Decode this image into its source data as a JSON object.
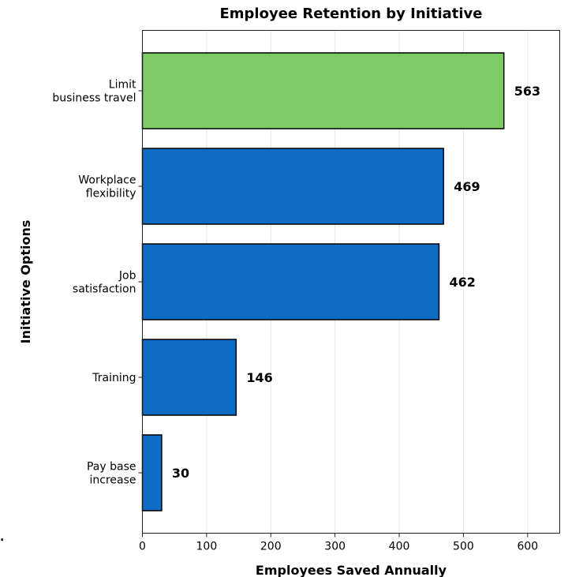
{
  "chart_data": {
    "type": "bar",
    "orientation": "horizontal",
    "title": "Employee Retention by Initiative",
    "xlabel": "Employees Saved Annually",
    "ylabel": "Initiative Options",
    "categories": [
      [
        "Limit",
        "business travel"
      ],
      [
        "Workplace",
        "flexibility"
      ],
      [
        "Job",
        "satisfaction"
      ],
      [
        "Training"
      ],
      [
        "Pay base",
        "increase"
      ]
    ],
    "values": [
      563,
      469,
      462,
      146,
      30
    ],
    "value_labels": [
      "563",
      "469",
      "462",
      "146",
      "30"
    ],
    "bar_colors": [
      "#7ecb65",
      "#0f6cc4",
      "#0f6cc4",
      "#0f6cc4",
      "#0f6cc4"
    ],
    "xlim": [
      0,
      650
    ],
    "xticks": [
      0,
      100,
      200,
      300,
      400,
      500,
      600
    ],
    "xtick_labels": [
      "0",
      "100",
      "200",
      "300",
      "400",
      "500",
      "600"
    ],
    "grid": "vertical",
    "stray_text": "."
  }
}
